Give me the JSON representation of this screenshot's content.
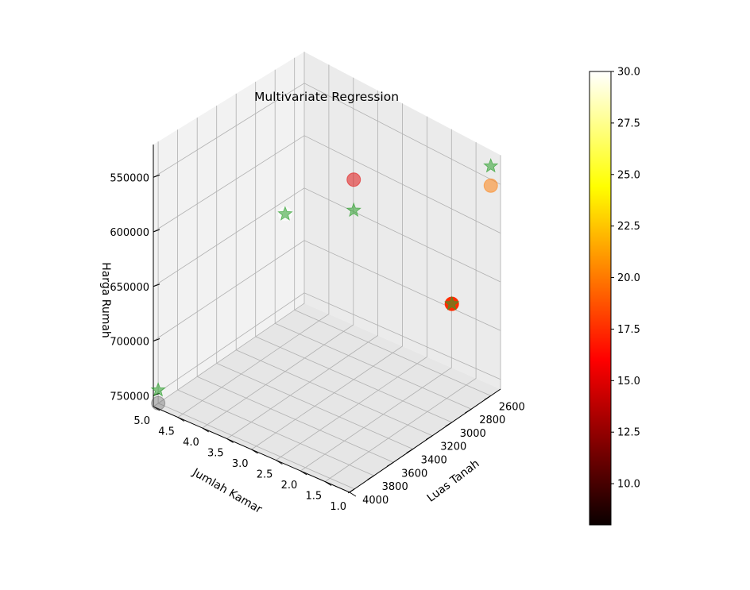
{
  "chart_data": {
    "type": "scatter",
    "title": "Multivariate Regression",
    "xlabel": "Luas Tanah",
    "ylabel": "Jumlah Kamar",
    "zlabel": "Harga Rumah",
    "xticks": [
      "2600",
      "2800",
      "3000",
      "3200",
      "3400",
      "3600",
      "3800",
      "4000"
    ],
    "yticks": [
      "1.0",
      "1.5",
      "2.0",
      "2.5",
      "3.0",
      "3.5",
      "4.0",
      "4.5",
      "5.0"
    ],
    "zticks": [
      "550000",
      "600000",
      "650000",
      "700000",
      "750000"
    ],
    "xlim": [
      2500,
      4050
    ],
    "ylim": [
      1.0,
      5.0
    ],
    "zlim": [
      520000,
      760000
    ],
    "z_inverted": true,
    "colorbar": {
      "colormap": "hot",
      "min": 8,
      "max": 30,
      "ticks": [
        "10.0",
        "12.5",
        "15.0",
        "17.5",
        "20.0",
        "22.5",
        "25.0",
        "27.5",
        "30.0"
      ]
    },
    "series": [
      {
        "marker": "circle",
        "points": [
          {
            "x": 2600,
            "y": 1.0,
            "z": 545000,
            "c": 20,
            "alpha": 0.5
          },
          {
            "x": 3000,
            "y": 3.0,
            "z": 565000,
            "c": 15,
            "alpha": 0.5
          },
          {
            "x": 3200,
            "y": 4.0,
            "z": 610000,
            "c": 30,
            "alpha": 0.5
          },
          {
            "x": 3000,
            "y": 1.0,
            "z": 640000,
            "c": 17.5,
            "alpha": 1.0
          },
          {
            "x": 4000,
            "y": 5.0,
            "z": 760000,
            "c": 8,
            "alpha": 0.35
          }
        ]
      },
      {
        "marker": "star",
        "color": "#2ca02c",
        "points": [
          {
            "x": 2600,
            "y": 1.0,
            "z": 525000
          },
          {
            "x": 3000,
            "y": 3.0,
            "z": 595000
          },
          {
            "x": 3200,
            "y": 4.0,
            "z": 610000
          },
          {
            "x": 3000,
            "y": 1.0,
            "z": 640000
          },
          {
            "x": 4000,
            "y": 5.0,
            "z": 748000
          }
        ]
      }
    ]
  }
}
